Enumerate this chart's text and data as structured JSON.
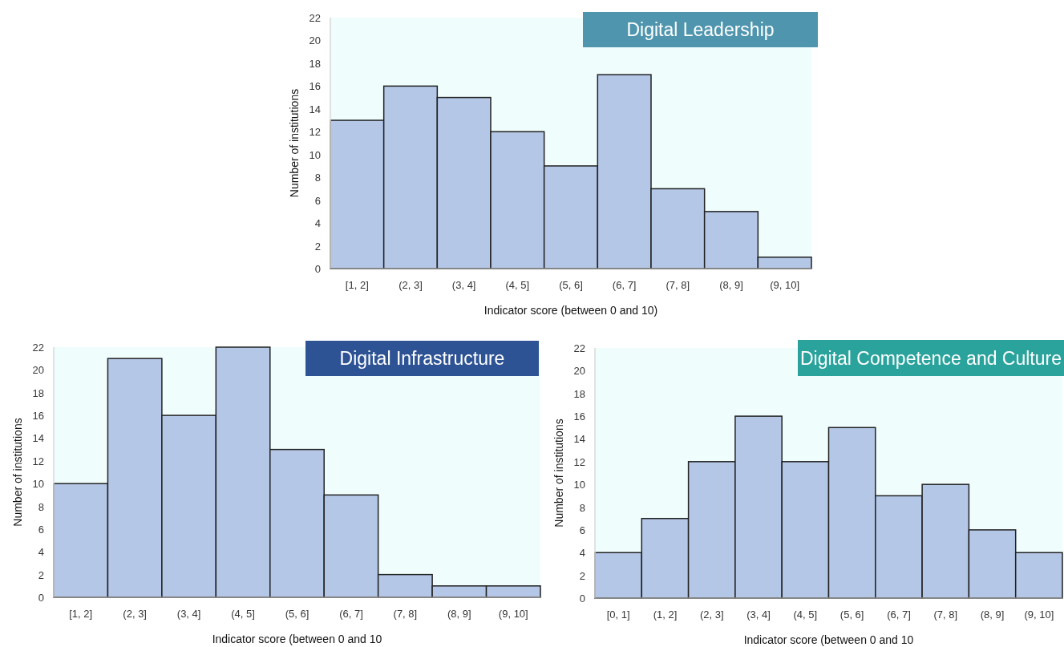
{
  "chart_data": [
    {
      "type": "bar",
      "title": "Digital Leadership",
      "xlabel": "Indicator score (between 0 and 10)",
      "ylabel": "Number of institutions",
      "categories": [
        "[1, 2]",
        "(2, 3]",
        "(3, 4]",
        "(4, 5]",
        "(5, 6]",
        "(6, 7]",
        "(7, 8]",
        "(8, 9]",
        "(9, 10]"
      ],
      "values": [
        13,
        16,
        15,
        12,
        9,
        17,
        7,
        5,
        1
      ],
      "color": "#b4c7e7",
      "ylim": [
        0,
        22
      ],
      "yticks": [
        0,
        2,
        4,
        6,
        8,
        10,
        12,
        14,
        16,
        18,
        20,
        22
      ]
    },
    {
      "type": "bar",
      "title": "Digital Infrastructure",
      "xlabel": "Indicator score (between 0 and 10",
      "ylabel": "Number of institutions",
      "categories": [
        "[1, 2]",
        "(2, 3]",
        "(3, 4]",
        "(4, 5]",
        "(5, 6]",
        "(6, 7]",
        "(7, 8]",
        "(8, 9]",
        "(9, 10]"
      ],
      "values": [
        10,
        21,
        16,
        22,
        13,
        9,
        2,
        1,
        1
      ],
      "color": "#b4c7e7",
      "ylim": [
        0,
        22
      ],
      "yticks": [
        0,
        2,
        4,
        6,
        8,
        10,
        12,
        14,
        16,
        18,
        20,
        22
      ]
    },
    {
      "type": "bar",
      "title": "Digital Competence and Culture",
      "xlabel": "Indicator score (between 0 and 10",
      "ylabel": "Number of institutions",
      "categories": [
        "[0, 1]",
        "(1, 2]",
        "(2, 3]",
        "(3, 4]",
        "(4, 5]",
        "(5, 6]",
        "(6, 7]",
        "(7, 8]",
        "(8, 9]",
        "(9, 10]"
      ],
      "values": [
        4,
        7,
        12,
        16,
        12,
        15,
        9,
        10,
        6,
        4
      ],
      "color": "#b4c7e7",
      "ylim": [
        0,
        22
      ],
      "yticks": [
        0,
        2,
        4,
        6,
        8,
        10,
        12,
        14,
        16,
        18,
        20,
        22
      ]
    }
  ]
}
